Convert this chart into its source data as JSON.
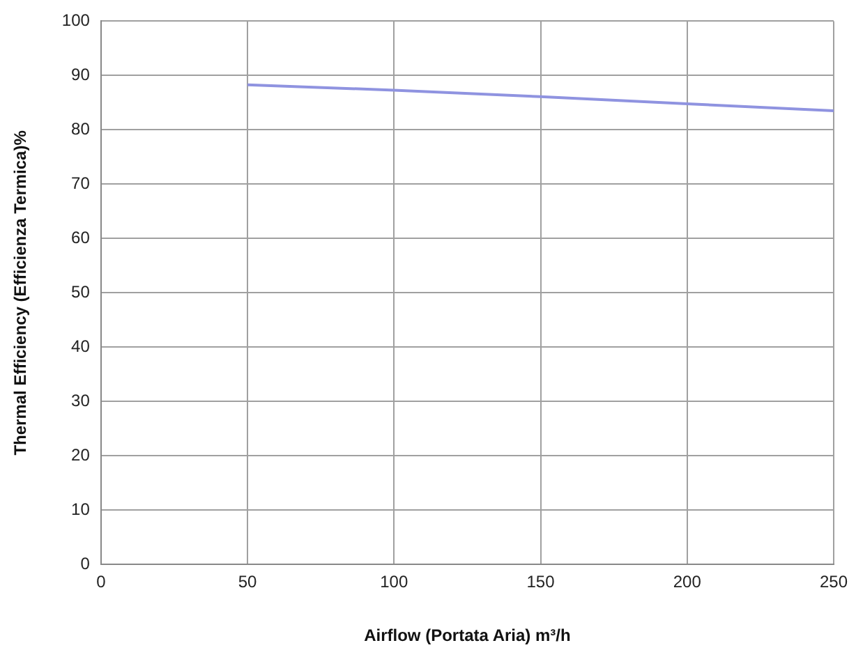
{
  "chart_data": {
    "type": "line",
    "xlabel": "Airflow (Portata Aria) m³/h",
    "ylabel": "Thermal Efficiency (Efficienza Termica)%",
    "x": [
      50,
      100,
      150,
      200,
      250
    ],
    "series": [
      {
        "color": "#8f93e0",
        "values": [
          88.3,
          87.3,
          86.1,
          84.8,
          83.5
        ]
      }
    ],
    "xlim": [
      0,
      250
    ],
    "xticks": [
      0,
      50,
      100,
      150,
      200,
      250
    ],
    "ylim": [
      0,
      100
    ],
    "yticks": [
      0,
      10,
      20,
      30,
      40,
      50,
      60,
      70,
      80,
      90,
      100
    ],
    "grid": true,
    "legend": false,
    "marker": "none",
    "line_style": "solid"
  }
}
